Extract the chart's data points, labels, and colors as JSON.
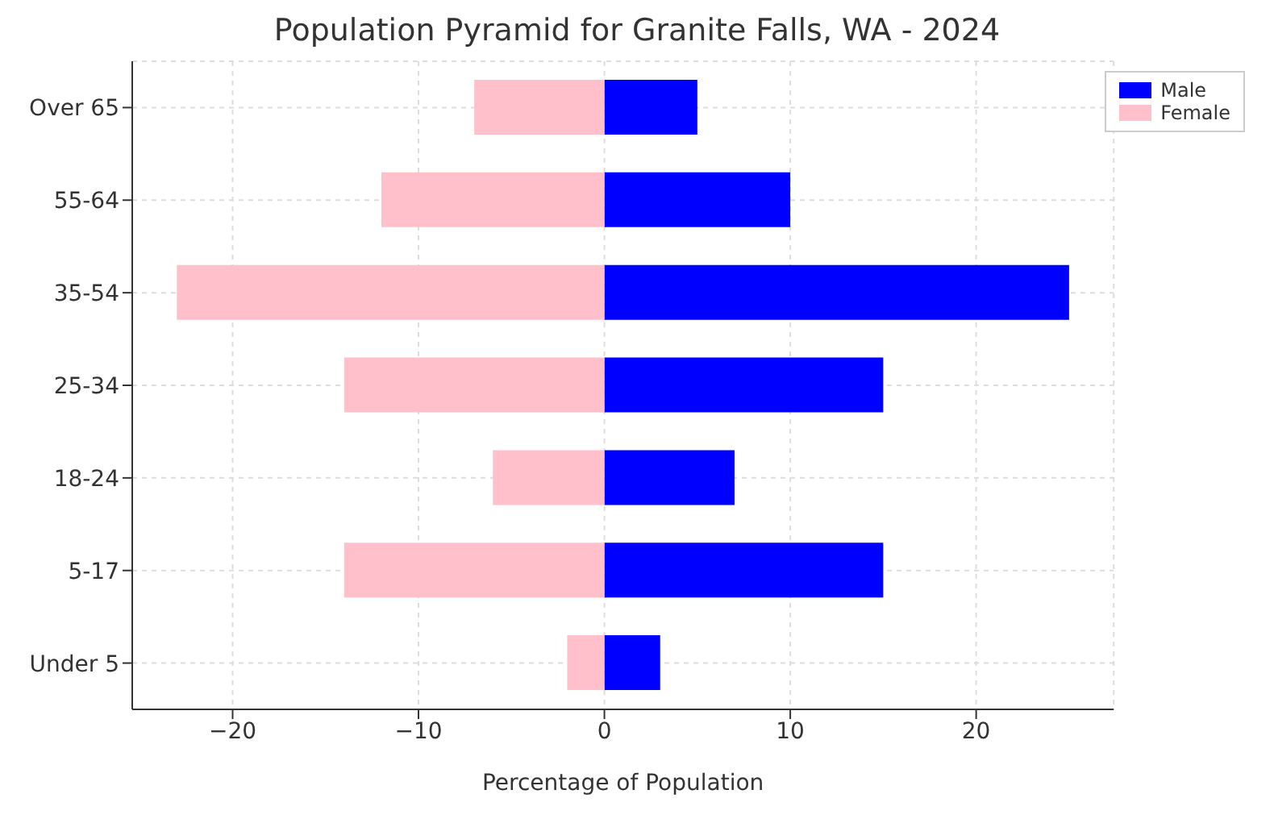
{
  "chart_data": {
    "type": "bar",
    "orientation": "horizontal",
    "title": "Population Pyramid for Granite Falls, WA - 2024",
    "xlabel": "Percentage of Population",
    "categories": [
      "Over 65",
      "55-64",
      "35-54",
      "25-34",
      "18-24",
      "5-17",
      "Under 5"
    ],
    "series": [
      {
        "name": "Male",
        "color": "#0000ff",
        "values": [
          5,
          10,
          25,
          15,
          7,
          15,
          3
        ]
      },
      {
        "name": "Female",
        "color": "#ffc0cb",
        "values": [
          -7,
          -12,
          -23,
          -14,
          -6,
          -14,
          -2
        ]
      }
    ],
    "xlim": [
      -25.4,
      27.4
    ],
    "xticks": [
      {
        "value": -20,
        "label": "−20"
      },
      {
        "value": -10,
        "label": "−10"
      },
      0,
      10,
      20
    ],
    "stacked": true,
    "grid": true,
    "legend": "top right"
  }
}
